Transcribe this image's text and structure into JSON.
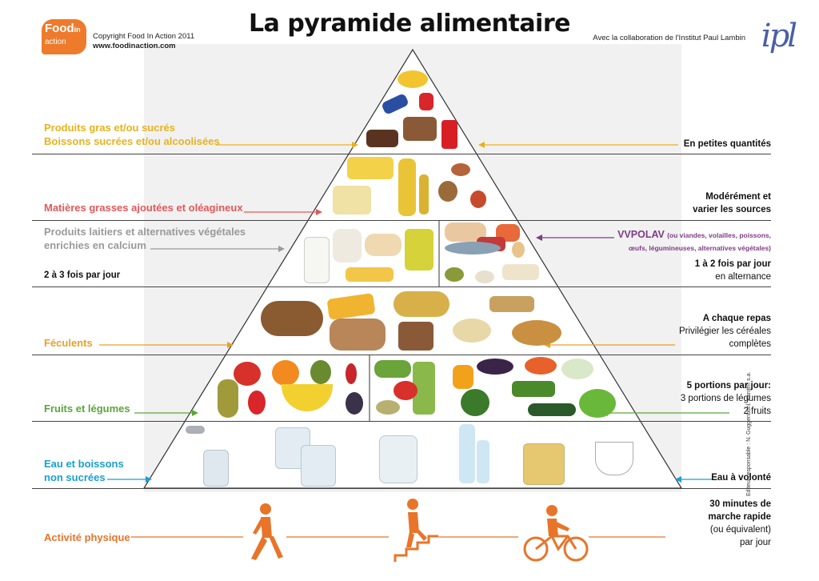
{
  "header": {
    "title": "La pyramide alimentaire",
    "logo_line1": "Food",
    "logo_line2": "in",
    "logo_line3": "action",
    "copyright": "Copyright Food In Action 2011",
    "website": "www.foodinaction.com",
    "collaboration": "Avec la collaboration de l'Institut Paul Lambin",
    "ipl_logo": "ipl"
  },
  "levels": {
    "sweets": {
      "label1": "Produits gras et/ou sucrés",
      "label2": "Boissons sucrées et/ou alcoolisées",
      "advice": "En petites quantités",
      "color": "#e8b21e"
    },
    "fats": {
      "label": "Matières grasses ajoutées et oléagineux",
      "advice1": "Modérément et",
      "advice2": "varier les sources",
      "color": "#e2585a"
    },
    "dairy": {
      "label1": "Produits laitiers et alternatives végétales",
      "label2": "enrichies en calcium",
      "freq": "2 à 3 fois par jour",
      "color": "#9a9a9a"
    },
    "protein": {
      "title": "VVPOLAV",
      "detail1": "(ou viandes, volailles, poissons,",
      "detail2": "œufs, légumineuses, alternatives végétales)",
      "freq1": "1 à 2 fois par jour",
      "freq2": "en alternance",
      "color": "#7e3c86"
    },
    "starch": {
      "label": "Féculents",
      "advice1": "A chaque repas",
      "advice2": "Privilégier les céréales",
      "advice3": "complètes",
      "color": "#e8a02a"
    },
    "fruitveg": {
      "label": "Fruits et légumes",
      "advice1": "5 portions par jour:",
      "advice2": "3 portions de légumes",
      "advice3": "2 fruits",
      "color": "#5aa63a"
    },
    "water": {
      "label1": "Eau et boissons",
      "label2": "non sucrées",
      "advice": "Eau à volonté",
      "color": "#1a9fce"
    },
    "activity": {
      "label": "Activité physique",
      "advice1": "30 minutes de",
      "advice2": "marche rapide",
      "advice3": "(ou équivalent)",
      "advice4": "par jour",
      "color": "#e8742a"
    }
  },
  "credit": "Editeur responsable : N. Guggenbühl. Kanitt® s.a."
}
